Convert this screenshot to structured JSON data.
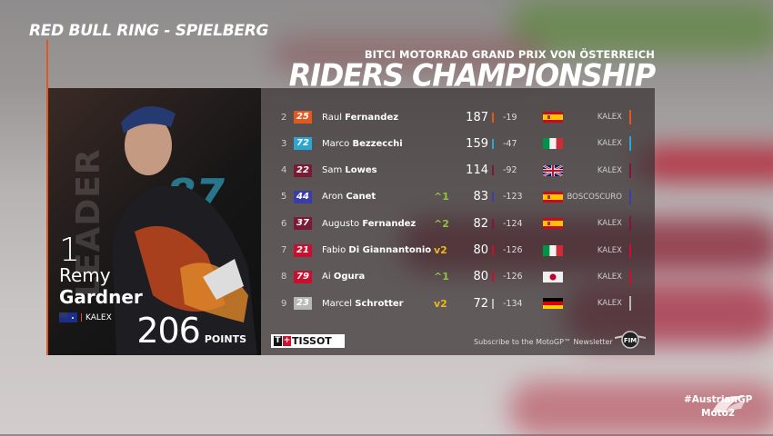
{
  "venue": "RED BULL RING - SPIELBERG",
  "event": "BITCI MOTORRAD GRAND PRIX VON ÖSTERREICH",
  "title": "RIDERS CHAMPIONSHIP",
  "leader": {
    "label": "LEADER",
    "position": "1",
    "first": "Remy",
    "last": "Gardner",
    "number": "87",
    "team": "KALEX",
    "points": "206",
    "points_label": "POINTS",
    "country": "australia"
  },
  "rows": [
    {
      "pos": "2",
      "num": "25",
      "first": "Raul",
      "last": "Fernandez",
      "change": "",
      "dir": "",
      "pts": "187",
      "gap": "-19",
      "country": "spain",
      "team": "KALEX",
      "color": "#e0581f"
    },
    {
      "pos": "3",
      "num": "72",
      "first": "Marco",
      "last": "Bezzecchi",
      "change": "",
      "dir": "",
      "pts": "159",
      "gap": "-47",
      "country": "italy",
      "team": "KALEX",
      "color": "#2aa6d1"
    },
    {
      "pos": "4",
      "num": "22",
      "first": "Sam",
      "last": "Lowes",
      "change": "",
      "dir": "",
      "pts": "114",
      "gap": "-92",
      "country": "uk",
      "team": "KALEX",
      "color": "#7a1a35"
    },
    {
      "pos": "5",
      "num": "44",
      "first": "Aron",
      "last": "Canet",
      "change": "1",
      "dir": "up",
      "pts": "83",
      "gap": "-123",
      "country": "spain",
      "team": "BOSCOSCURO",
      "color": "#3b3ea8"
    },
    {
      "pos": "6",
      "num": "37",
      "first": "Augusto",
      "last": "Fernandez",
      "change": "2",
      "dir": "up",
      "pts": "82",
      "gap": "-124",
      "country": "spain",
      "team": "KALEX",
      "color": "#7a1a35"
    },
    {
      "pos": "7",
      "num": "21",
      "first": "Fabio",
      "last": "Di Giannantonio",
      "change": "2",
      "dir": "down",
      "pts": "80",
      "gap": "-126",
      "country": "italy",
      "team": "KALEX",
      "color": "#c8102e"
    },
    {
      "pos": "8",
      "num": "79",
      "first": "Ai",
      "last": "Ogura",
      "change": "1",
      "dir": "up",
      "pts": "80",
      "gap": "-126",
      "country": "japan",
      "team": "KALEX",
      "color": "#c8102e"
    },
    {
      "pos": "9",
      "num": "23",
      "first": "Marcel",
      "last": "Schrotter",
      "change": "2",
      "dir": "down",
      "pts": "72",
      "gap": "-134",
      "country": "germany",
      "team": "KALEX",
      "color": "#b8b8b8"
    }
  ],
  "sponsor": "TISSOT",
  "newsletter": "Subscribe to the MotoGP™ Newsletter",
  "hashtag": "#AustrianGP",
  "class": "Moto2",
  "colors": {
    "up": "#8bc53f",
    "down": "#e8b81c",
    "accent": "#e0581f"
  }
}
